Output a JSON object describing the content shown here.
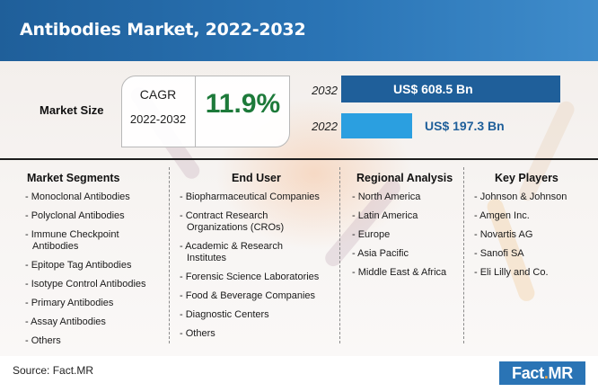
{
  "header": {
    "title": "Antibodies Market, 2022-2032"
  },
  "market_size": {
    "label": "Market Size",
    "cagr_label": "CAGR",
    "cagr_period": "2022-2032",
    "cagr_value": "11.9%"
  },
  "chart_data": {
    "type": "bar",
    "orientation": "horizontal",
    "categories": [
      "2032",
      "2022"
    ],
    "values": [
      608.5,
      197.3
    ],
    "value_labels": [
      "US$ 608.5 Bn",
      "US$ 197.3 Bn"
    ],
    "colors": [
      "#1f5f9a",
      "#2b9fe0"
    ],
    "xlim": [
      0,
      608.5
    ]
  },
  "columns": [
    {
      "title": "Market Segments",
      "items": [
        "- Monoclonal Antibodies",
        "- Polyclonal Antibodies",
        "- Immune Checkpoint\nAntibodies",
        "- Epitope Tag Antibodies",
        "- Isotype Control Antibodies",
        "- Primary Antibodies",
        "- Assay Antibodies",
        "- Others"
      ]
    },
    {
      "title": "End User",
      "items": [
        "- Biopharmaceutical Companies",
        "- Contract Research\nOrganizations (CROs)",
        "- Academic & Research\nInstitutes",
        "- Forensic Science Laboratories",
        "- Food & Beverage Companies",
        "- Diagnostic  Centers",
        "- Others"
      ]
    },
    {
      "title": "Regional Analysis",
      "items": [
        "- North America",
        "- Latin America",
        "- Europe",
        "- Asia Pacific",
        "- Middle East & Africa"
      ]
    },
    {
      "title": "Key Players",
      "items": [
        "- Johnson & Johnson",
        "- Amgen Inc.",
        "- Novartis AG",
        "- Sanofi SA",
        "- Eli Lilly and Co."
      ]
    }
  ],
  "footer": {
    "source": "Source: Fact.MR",
    "logo_left": "Fact",
    "logo_dot": ".",
    "logo_right": "MR"
  }
}
